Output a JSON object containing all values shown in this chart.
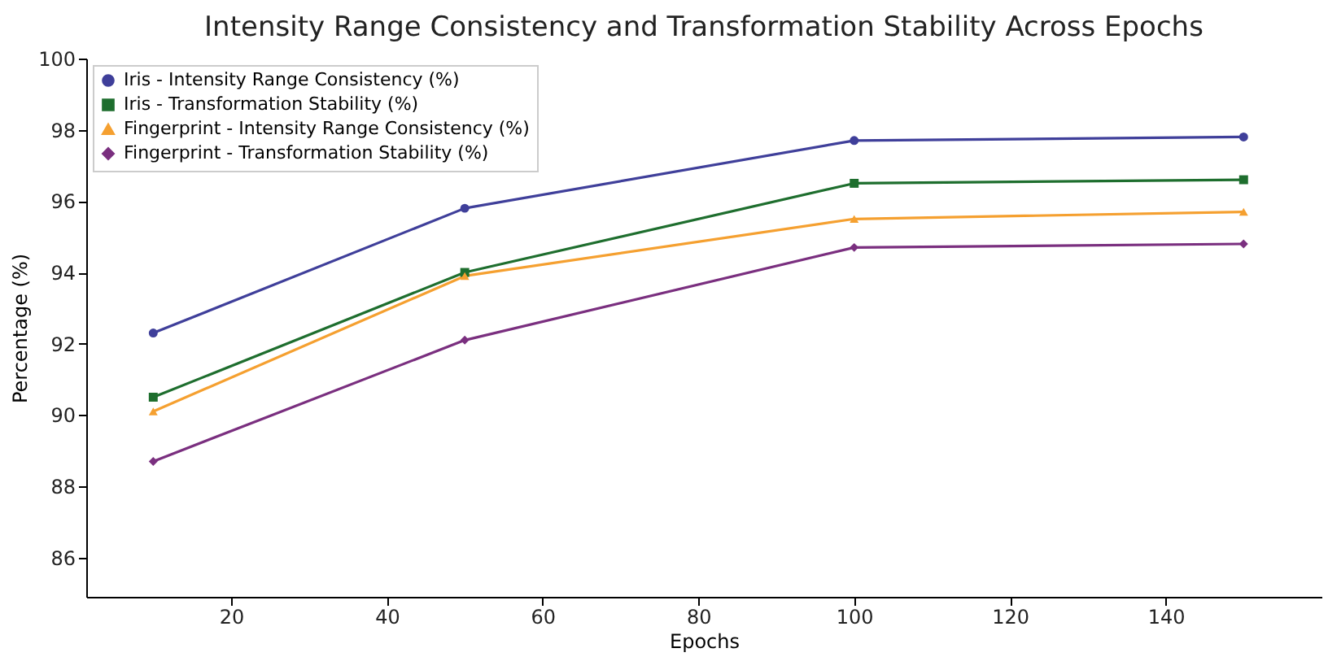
{
  "chart_data": {
    "type": "line",
    "title": "Intensity Range Consistency and Transformation Stability Across Epochs",
    "xlabel": "Epochs",
    "ylabel": "Percentage (%)",
    "x": [
      10,
      50,
      100,
      150
    ],
    "xlim": [
      1.4,
      160
    ],
    "xticks": [
      20,
      40,
      60,
      80,
      100,
      120,
      140
    ],
    "ylim": [
      84.9,
      100
    ],
    "yticks": [
      86,
      88,
      90,
      92,
      94,
      96,
      98,
      100
    ],
    "grid": false,
    "legend": "top left",
    "line_style": "solid",
    "series": [
      {
        "name": "Iris - Intensity Range Consistency (%)",
        "color": "#3f3f9a",
        "marker": "circle",
        "values": [
          92.3,
          95.8,
          97.7,
          97.8
        ]
      },
      {
        "name": "Iris - Transformation Stability (%)",
        "color": "#1e6e2e",
        "marker": "square",
        "values": [
          90.5,
          94.0,
          96.5,
          96.6
        ]
      },
      {
        "name": "Fingerprint - Intensity Range Consistency (%)",
        "color": "#f5a030",
        "marker": "triangle",
        "values": [
          90.1,
          93.9,
          95.5,
          95.7
        ]
      },
      {
        "name": "Fingerprint - Transformation Stability (%)",
        "color": "#7a2f7f",
        "marker": "diamond",
        "values": [
          88.7,
          92.1,
          94.7,
          94.8
        ]
      }
    ]
  }
}
